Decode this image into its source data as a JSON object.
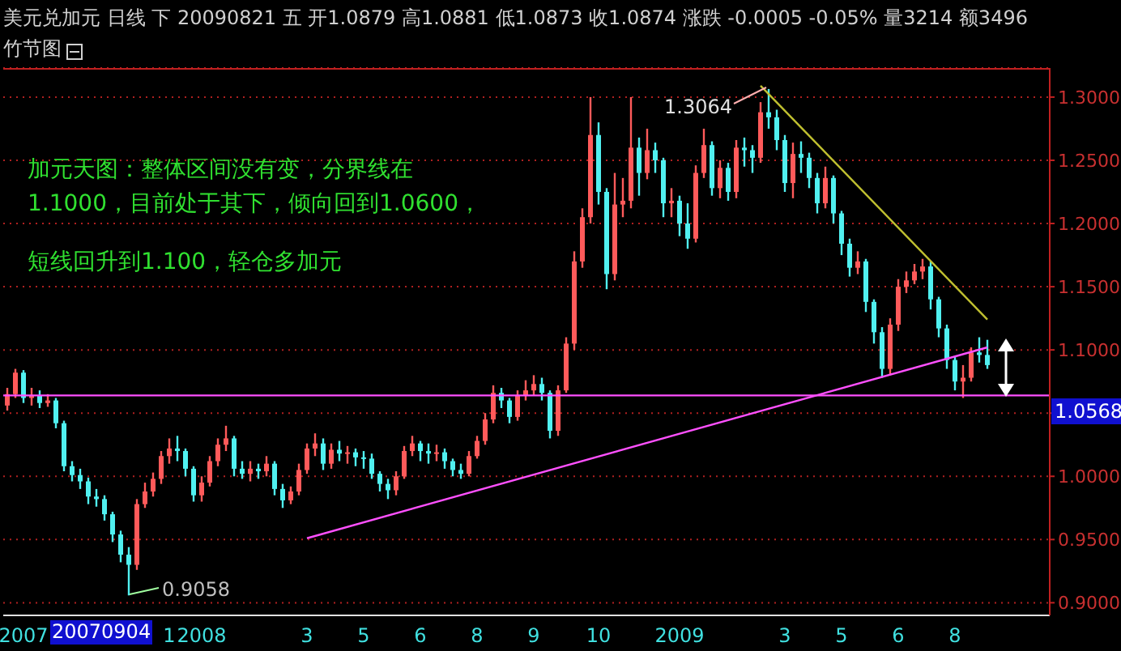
{
  "chart_data": {
    "type": "candlestick",
    "title": "美元兑加元 日线 下 20090821 五 开1.0879 高1.0881 低1.0873 收1.0874 涨跌 -0.0005 -0.05% 量3214 额3496",
    "subtitle": "竹节图",
    "categories": [
      null,
      null,
      "2007",
      null,
      null,
      null,
      null,
      null,
      null,
      null,
      null,
      null,
      null,
      null,
      null,
      null,
      null,
      null,
      null,
      null,
      "1",
      null,
      null,
      null,
      "2008",
      null,
      null,
      null,
      null,
      null,
      null,
      null,
      null,
      null,
      null,
      null,
      null,
      "3",
      null,
      null,
      null,
      null,
      null,
      null,
      "5",
      null,
      null,
      null,
      null,
      null,
      null,
      "6",
      null,
      null,
      null,
      null,
      null,
      null,
      "8",
      null,
      null,
      null,
      null,
      null,
      null,
      "9",
      null,
      null,
      null,
      null,
      null,
      null,
      null,
      "10",
      null,
      null,
      null,
      null,
      null,
      null,
      null,
      null,
      null,
      "2009",
      null,
      null,
      null,
      null,
      null,
      null,
      null,
      null,
      null,
      null,
      null,
      null,
      "3",
      null,
      null,
      null,
      null,
      null,
      null,
      "5",
      null,
      null,
      null,
      null,
      null,
      null,
      "6",
      null,
      null,
      null,
      null,
      null,
      null,
      "8",
      null,
      null,
      null,
      null
    ],
    "ohlc": [
      [
        1.056,
        1.07,
        1.052,
        1.065
      ],
      [
        1.065,
        1.085,
        1.062,
        1.082
      ],
      [
        1.082,
        1.084,
        1.058,
        1.062
      ],
      [
        1.062,
        1.07,
        1.056,
        1.064
      ],
      [
        1.064,
        1.068,
        1.054,
        1.058
      ],
      [
        1.058,
        1.065,
        1.055,
        1.06
      ],
      [
        1.06,
        1.062,
        1.038,
        1.042
      ],
      [
        1.042,
        1.044,
        1.004,
        1.008
      ],
      [
        1.008,
        1.012,
        0.996,
        1.001
      ],
      [
        1.001,
        1.006,
        0.99,
        0.996
      ],
      [
        0.996,
        0.999,
        0.978,
        0.984
      ],
      [
        0.984,
        0.99,
        0.976,
        0.982
      ],
      [
        0.982,
        0.985,
        0.965,
        0.97
      ],
      [
        0.97,
        0.972,
        0.948,
        0.954
      ],
      [
        0.954,
        0.957,
        0.932,
        0.938
      ],
      [
        0.938,
        0.944,
        0.9058,
        0.93
      ],
      [
        0.93,
        0.982,
        0.926,
        0.978
      ],
      [
        0.978,
        0.995,
        0.975,
        0.988
      ],
      [
        0.988,
        1.003,
        0.984,
        0.998
      ],
      [
        0.998,
        1.02,
        0.994,
        1.016
      ],
      [
        1.016,
        1.03,
        1.01,
        1.022
      ],
      [
        1.022,
        1.032,
        1.012,
        1.02
      ],
      [
        1.02,
        1.022,
        1.0,
        1.006
      ],
      [
        1.006,
        1.008,
        0.98,
        0.985
      ],
      [
        0.985,
        1.0,
        0.98,
        0.995
      ],
      [
        0.995,
        1.016,
        0.992,
        1.012
      ],
      [
        1.012,
        1.03,
        1.008,
        1.025
      ],
      [
        1.025,
        1.04,
        1.02,
        1.03
      ],
      [
        1.03,
        1.032,
        1.0,
        1.006
      ],
      [
        1.006,
        1.012,
        0.998,
        1.002
      ],
      [
        1.002,
        1.012,
        0.996,
        1.006
      ],
      [
        1.006,
        1.01,
        0.998,
        1.004
      ],
      [
        1.004,
        1.016,
        1.0,
        1.01
      ],
      [
        1.01,
        1.012,
        0.985,
        0.99
      ],
      [
        0.99,
        0.994,
        0.975,
        0.981
      ],
      [
        0.981,
        0.992,
        0.978,
        0.988
      ],
      [
        0.988,
        1.01,
        0.985,
        1.005
      ],
      [
        1.005,
        1.026,
        1.002,
        1.022
      ],
      [
        1.022,
        1.034,
        1.016,
        1.026
      ],
      [
        1.026,
        1.03,
        1.005,
        1.01
      ],
      [
        1.01,
        1.026,
        1.006,
        1.021
      ],
      [
        1.021,
        1.028,
        1.012,
        1.018
      ],
      [
        1.018,
        1.024,
        1.01,
        1.019
      ],
      [
        1.019,
        1.022,
        1.008,
        1.015
      ],
      [
        1.015,
        1.02,
        1.006,
        1.014
      ],
      [
        1.014,
        1.018,
        0.998,
        1.002
      ],
      [
        1.002,
        1.004,
        0.988,
        0.994
      ],
      [
        0.994,
        0.998,
        0.982,
        0.989
      ],
      [
        0.989,
        1.004,
        0.985,
        1.0
      ],
      [
        1.0,
        1.024,
        0.998,
        1.02
      ],
      [
        1.02,
        1.032,
        1.016,
        1.026
      ],
      [
        1.026,
        1.028,
        1.012,
        1.02
      ],
      [
        1.02,
        1.026,
        1.01,
        1.018
      ],
      [
        1.018,
        1.025,
        1.012,
        1.019
      ],
      [
        1.019,
        1.022,
        1.006,
        1.012
      ],
      [
        1.012,
        1.014,
        1.0,
        1.005
      ],
      [
        1.005,
        1.01,
        0.998,
        1.002
      ],
      [
        1.002,
        1.02,
        1.0,
        1.016
      ],
      [
        1.016,
        1.032,
        1.014,
        1.028
      ],
      [
        1.028,
        1.05,
        1.025,
        1.045
      ],
      [
        1.045,
        1.072,
        1.042,
        1.066
      ],
      [
        1.066,
        1.07,
        1.054,
        1.06
      ],
      [
        1.06,
        1.062,
        1.042,
        1.047
      ],
      [
        1.047,
        1.068,
        1.044,
        1.064
      ],
      [
        1.064,
        1.076,
        1.06,
        1.068
      ],
      [
        1.068,
        1.08,
        1.064,
        1.073
      ],
      [
        1.073,
        1.078,
        1.06,
        1.066
      ],
      [
        1.066,
        1.068,
        1.03,
        1.036
      ],
      [
        1.036,
        1.072,
        1.032,
        1.068
      ],
      [
        1.068,
        1.11,
        1.066,
        1.105
      ],
      [
        1.105,
        1.178,
        1.1,
        1.17
      ],
      [
        1.17,
        1.212,
        1.165,
        1.205
      ],
      [
        1.205,
        1.3,
        1.2,
        1.27
      ],
      [
        1.27,
        1.28,
        1.215,
        1.225
      ],
      [
        1.225,
        1.228,
        1.148,
        1.16
      ],
      [
        1.16,
        1.24,
        1.155,
        1.215
      ],
      [
        1.215,
        1.236,
        1.205,
        1.218
      ],
      [
        1.218,
        1.3,
        1.212,
        1.26
      ],
      [
        1.26,
        1.268,
        1.222,
        1.24
      ],
      [
        1.24,
        1.275,
        1.235,
        1.258
      ],
      [
        1.258,
        1.264,
        1.24,
        1.25
      ],
      [
        1.25,
        1.252,
        1.205,
        1.216
      ],
      [
        1.216,
        1.228,
        1.205,
        1.218
      ],
      [
        1.218,
        1.222,
        1.19,
        1.2
      ],
      [
        1.2,
        1.216,
        1.18,
        1.188
      ],
      [
        1.188,
        1.246,
        1.185,
        1.24
      ],
      [
        1.24,
        1.275,
        1.236,
        1.262
      ],
      [
        1.262,
        1.265,
        1.222,
        1.228
      ],
      [
        1.228,
        1.25,
        1.22,
        1.244
      ],
      [
        1.244,
        1.248,
        1.218,
        1.225
      ],
      [
        1.225,
        1.266,
        1.22,
        1.26
      ],
      [
        1.26,
        1.268,
        1.245,
        1.258
      ],
      [
        1.258,
        1.262,
        1.24,
        1.252
      ],
      [
        1.252,
        1.296,
        1.248,
        1.288
      ],
      [
        1.288,
        1.3064,
        1.275,
        1.284
      ],
      [
        1.284,
        1.29,
        1.258,
        1.266
      ],
      [
        1.266,
        1.27,
        1.225,
        1.232
      ],
      [
        1.232,
        1.264,
        1.22,
        1.255
      ],
      [
        1.255,
        1.265,
        1.24,
        1.252
      ],
      [
        1.252,
        1.256,
        1.228,
        1.236
      ],
      [
        1.236,
        1.24,
        1.208,
        1.216
      ],
      [
        1.216,
        1.245,
        1.212,
        1.236
      ],
      [
        1.236,
        1.238,
        1.2,
        1.208
      ],
      [
        1.208,
        1.21,
        1.175,
        1.184
      ],
      [
        1.184,
        1.188,
        1.158,
        1.165
      ],
      [
        1.165,
        1.178,
        1.16,
        1.17
      ],
      [
        1.17,
        1.172,
        1.13,
        1.138
      ],
      [
        1.138,
        1.14,
        1.105,
        1.114
      ],
      [
        1.114,
        1.118,
        1.078,
        1.085
      ],
      [
        1.085,
        1.125,
        1.08,
        1.12
      ],
      [
        1.12,
        1.156,
        1.115,
        1.15
      ],
      [
        1.15,
        1.162,
        1.145,
        1.155
      ],
      [
        1.155,
        1.168,
        1.152,
        1.162
      ],
      [
        1.162,
        1.172,
        1.156,
        1.166
      ],
      [
        1.166,
        1.17,
        1.132,
        1.14
      ],
      [
        1.14,
        1.142,
        1.11,
        1.117
      ],
      [
        1.117,
        1.12,
        1.085,
        1.092
      ],
      [
        1.092,
        1.095,
        1.068,
        1.075
      ],
      [
        1.075,
        1.088,
        1.062,
        1.078
      ],
      [
        1.078,
        1.102,
        1.075,
        1.098
      ],
      [
        1.098,
        1.11,
        1.09,
        1.096
      ],
      [
        1.096,
        1.108,
        1.085,
        1.088
      ]
    ],
    "series": [
      {
        "type": "line",
        "color": "#ff50ff",
        "values": [
          null,
          null,
          null,
          null,
          null,
          null,
          null,
          null,
          null,
          null,
          null,
          null,
          null,
          null,
          null,
          null,
          null,
          null,
          null,
          null,
          null,
          null,
          null,
          null,
          null,
          null,
          null,
          null,
          null,
          null,
          null,
          null,
          null,
          null,
          null,
          null,
          null,
          0.951,
          null,
          null,
          null,
          null,
          null,
          null,
          null,
          null,
          null,
          null,
          null,
          null,
          null,
          null,
          null,
          null,
          null,
          null,
          null,
          null,
          null,
          null,
          null,
          null,
          null,
          null,
          null,
          null,
          null,
          null,
          null,
          null,
          null,
          null,
          null,
          null,
          null,
          null,
          null,
          null,
          null,
          null,
          null,
          null,
          null,
          null,
          null,
          null,
          null,
          null,
          null,
          null,
          null,
          null,
          null,
          null,
          null,
          null,
          null,
          null,
          null,
          null,
          null,
          null,
          null,
          null,
          null,
          null,
          null,
          null,
          null,
          null,
          null,
          null,
          null,
          null,
          null,
          null,
          null,
          null,
          null,
          null,
          null,
          1.102
        ]
      },
      {
        "type": "line",
        "color": "#c0c030",
        "values": [
          null,
          null,
          null,
          null,
          null,
          null,
          null,
          null,
          null,
          null,
          null,
          null,
          null,
          null,
          null,
          null,
          null,
          null,
          null,
          null,
          null,
          null,
          null,
          null,
          null,
          null,
          null,
          null,
          null,
          null,
          null,
          null,
          null,
          null,
          null,
          null,
          null,
          null,
          null,
          null,
          null,
          null,
          null,
          null,
          null,
          null,
          null,
          null,
          null,
          null,
          null,
          null,
          null,
          null,
          null,
          null,
          null,
          null,
          null,
          null,
          null,
          null,
          null,
          null,
          null,
          null,
          null,
          null,
          null,
          null,
          null,
          null,
          null,
          null,
          null,
          null,
          null,
          null,
          null,
          null,
          null,
          null,
          null,
          null,
          null,
          null,
          null,
          null,
          null,
          null,
          null,
          null,
          null,
          1.309,
          null,
          null,
          null,
          null,
          null,
          null,
          null,
          null,
          null,
          null,
          null,
          null,
          null,
          null,
          null,
          null,
          null,
          null,
          null,
          null,
          null,
          null,
          null,
          null,
          null,
          null,
          null,
          1.124
        ]
      }
    ],
    "ylim": [
      0.89,
      1.323
    ],
    "yticks": [
      {
        "value": 0.9,
        "label": "0.9000"
      },
      {
        "value": 0.95,
        "label": "0.9500"
      },
      {
        "value": 1.0,
        "label": "1.0000"
      },
      {
        "value": 1.05,
        "label": null
      },
      {
        "value": 1.1,
        "label": "1.1000"
      },
      {
        "value": 1.15,
        "label": "1.1500"
      },
      {
        "value": 1.2,
        "label": "1.2000"
      },
      {
        "value": 1.25,
        "label": "1.2500"
      },
      {
        "value": 1.3,
        "label": "1.3000"
      }
    ],
    "grid": "y",
    "ref_lines": [
      {
        "axis": "y",
        "value": 1.064,
        "color": "#ff50ff"
      }
    ],
    "annotations": [
      "加元天图：整体区间没有变，分界线在",
      "1.1000，目前处于其下，倾向回到1.0600，",
      "短线回升到1.100，轻仓多加元",
      "20070904",
      "1.3064",
      "0.9058",
      "1.0568"
    ]
  }
}
